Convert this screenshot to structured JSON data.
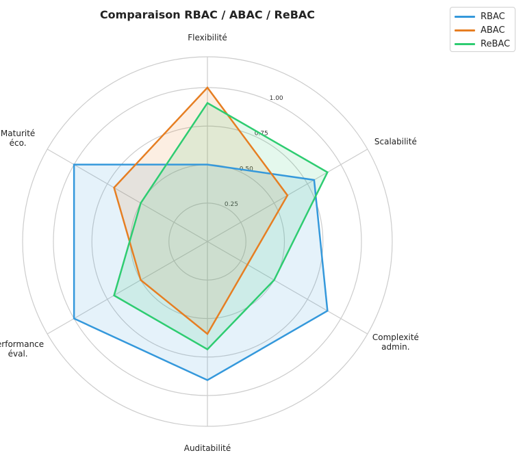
{
  "chart_data": {
    "type": "radar",
    "title": "Comparaison RBAC / ABAC / ReBAC",
    "axes": [
      "Flexibilité",
      "Scalabilité",
      "Complexité admin.",
      "Auditabilité",
      "Performance éval.",
      "Maturité éco."
    ],
    "rlim": [
      0,
      1.2
    ],
    "rticks": [
      0.25,
      0.5,
      0.75,
      1.0
    ],
    "rtick_labels": [
      "0.25",
      "0.50",
      "0.75",
      "1.00"
    ],
    "grid": true,
    "legend_position": "top-right",
    "series": [
      {
        "name": "RBAC",
        "color": "#3498db",
        "values": [
          0.5,
          0.8,
          0.9,
          0.9,
          1.0,
          1.0
        ]
      },
      {
        "name": "ABAC",
        "color": "#e67e22",
        "values": [
          1.0,
          0.6,
          0.3,
          0.6,
          0.5,
          0.7
        ]
      },
      {
        "name": "ReBAC",
        "color": "#2ecc71",
        "values": [
          0.9,
          0.9,
          0.5,
          0.7,
          0.7,
          0.5
        ]
      }
    ]
  }
}
